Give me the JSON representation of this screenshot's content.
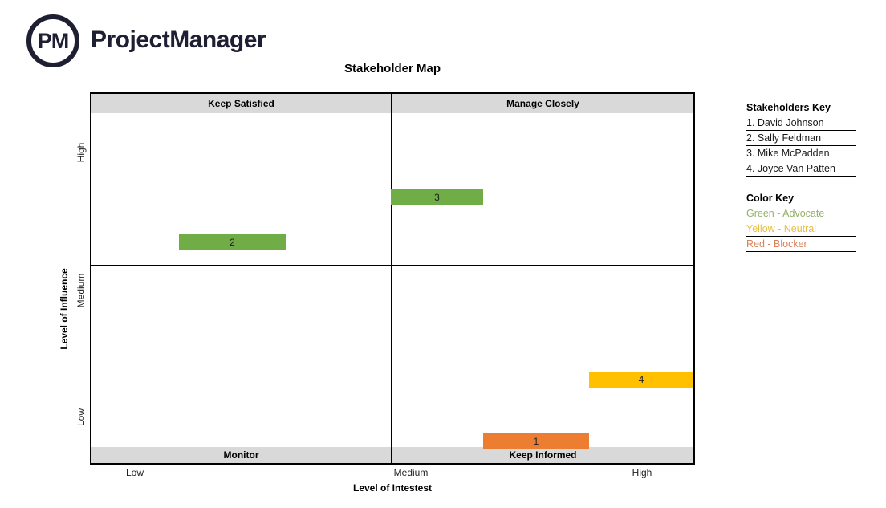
{
  "brand": {
    "logo_monogram": "PM",
    "name": "ProjectManager",
    "color": "#1F1F33"
  },
  "chart_data": {
    "type": "quadrant_stakeholder_map",
    "title": "Stakeholder Map",
    "xlabel": "Level of Intestest",
    "ylabel": "Level of Influence",
    "x_ticks": [
      "Low",
      "Medium",
      "High"
    ],
    "y_ticks": [
      "High",
      "Medium",
      "Low"
    ],
    "quadrant_labels": {
      "top_left": "Keep Satisfied",
      "top_right": "Manage Closely",
      "bottom_left": "Monitor",
      "bottom_right": "Keep Informed"
    },
    "band_color": "#D9D9D9",
    "points": [
      {
        "label": "1",
        "name": "David Johnson",
        "stance": "Blocker",
        "color": "#ED7D31",
        "influence": "Low",
        "interest": "Medium",
        "quadrant": "Keep Informed"
      },
      {
        "label": "2",
        "name": "Sally Feldman",
        "stance": "Advocate",
        "color": "#70AD47",
        "influence": "High",
        "interest": "Low",
        "quadrant": "Keep Satisfied"
      },
      {
        "label": "3",
        "name": "Mike McPadden",
        "stance": "Advocate",
        "color": "#70AD47",
        "influence": "High",
        "interest": "Medium",
        "quadrant": "Manage Closely"
      },
      {
        "label": "4",
        "name": "Joyce Van Patten",
        "stance": "Neutral",
        "color": "#FFC000",
        "influence": "Medium-Low",
        "interest": "High",
        "quadrant": "Keep Informed"
      }
    ]
  },
  "stakeholders_key": {
    "title": "Stakeholders Key",
    "entries": [
      "1. David Johnson",
      "2. Sally Feldman",
      "3. Mike McPadden",
      "4. Joyce Van Patten"
    ]
  },
  "color_key": {
    "title": "Color Key",
    "entries": [
      {
        "label": "Green - Advocate",
        "color": "#94B168"
      },
      {
        "label": "Yellow - Neutral",
        "color": "#E7BE43"
      },
      {
        "label": "Red - Blocker",
        "color": "#D8815A"
      }
    ]
  }
}
